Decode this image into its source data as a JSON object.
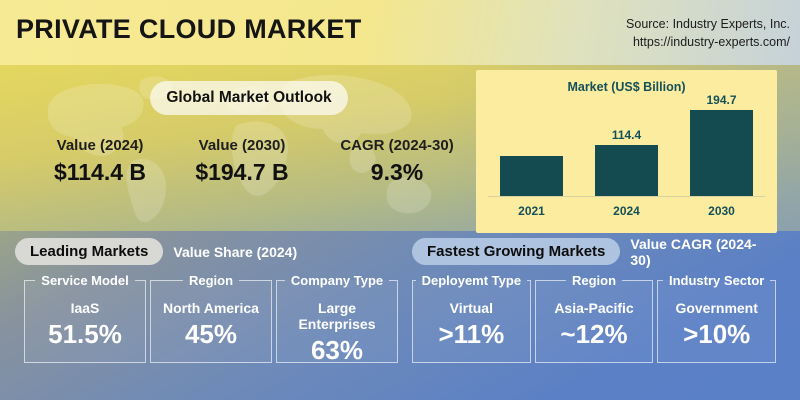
{
  "header": {
    "title": "PRIVATE CLOUD MARKET",
    "source_line1": "Source: Industry Experts, Inc.",
    "source_line2": "https://industry-experts.com/"
  },
  "outlook": {
    "badge": "Global Market Outlook",
    "stats": [
      {
        "label": "Value (2024)",
        "value": "$114.4 B"
      },
      {
        "label": "Value (2030)",
        "value": "$194.7 B"
      },
      {
        "label": "CAGR (2024-30)",
        "value": "9.3%"
      }
    ]
  },
  "chart_data": {
    "type": "bar",
    "title": "Market (US$ Billion)",
    "categories": [
      "2021",
      "2024",
      "2030"
    ],
    "values": [
      91,
      114.4,
      194.7
    ],
    "data_labels": [
      "",
      "114.4",
      "194.7"
    ],
    "ylim": [
      0,
      200
    ],
    "grid": false,
    "legend": "none",
    "bar_color": "#134b50",
    "panel_color": "#fcec9f"
  },
  "leading": {
    "badge": "Leading Markets",
    "subtitle": "Value Share (2024)",
    "items": [
      {
        "title": "Service Model",
        "name": "IaaS",
        "value": "51.5%"
      },
      {
        "title": "Region",
        "name": "North America",
        "value": "45%"
      },
      {
        "title": "Company Type",
        "name": "Large Enterprises",
        "value": "63%"
      }
    ]
  },
  "fastest": {
    "badge": "Fastest Growing Markets",
    "subtitle": "Value CAGR (2024-30)",
    "items": [
      {
        "title": "Deployemt Type",
        "name": "Virtual",
        "value": ">11%"
      },
      {
        "title": "Region",
        "name": "Asia-Pacific",
        "value": "~12%"
      },
      {
        "title": "Industry Sector",
        "name": "Government",
        "value": ">10%"
      }
    ]
  },
  "colors": {
    "top_band_yellow": "#f5e88f",
    "top_band_blue": "#c6d2d9",
    "mid_band_yellow": "#e4d75f",
    "mid_band_teal": "#8ba1a9",
    "bottom_band_blue": "#5a80c8",
    "badge_grey": "#d8d8d5",
    "badge_blue": "#aec3e0",
    "chart_text": "#14505a"
  }
}
